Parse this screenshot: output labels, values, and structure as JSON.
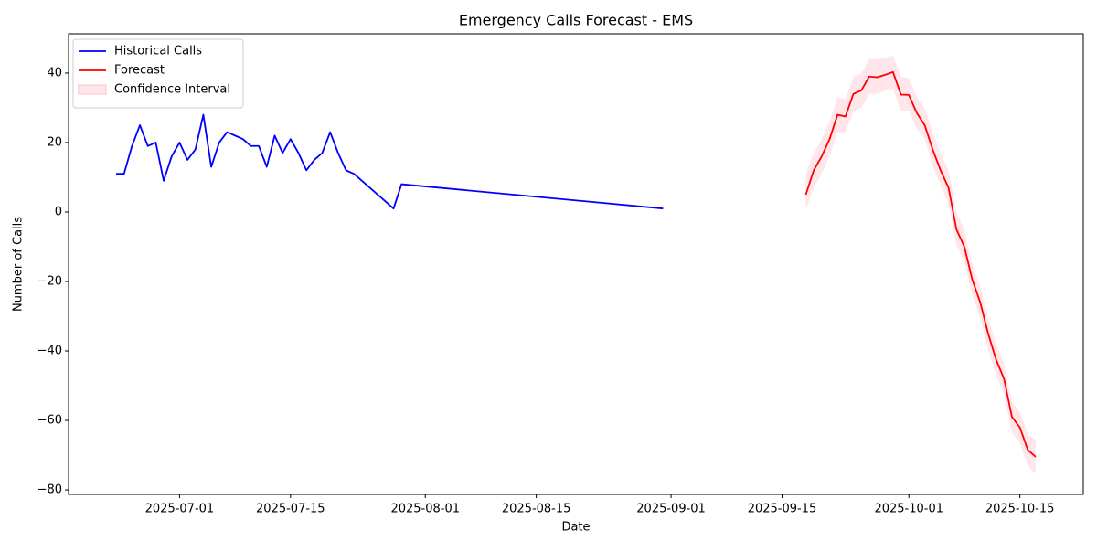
{
  "chart_data": {
    "type": "line",
    "title": "Emergency Calls Forecast - EMS",
    "xlabel": "Date",
    "ylabel": "Number of Calls",
    "xlim": [
      "2025-06-17",
      "2025-10-23"
    ],
    "xticks": [
      "2025-07-01",
      "2025-07-15",
      "2025-08-01",
      "2025-08-15",
      "2025-09-01",
      "2025-09-15",
      "2025-10-01",
      "2025-10-15"
    ],
    "ylim": [
      -81.3,
      51.3
    ],
    "yticks": [
      {
        "value": -80,
        "label": "−80"
      },
      {
        "value": -60,
        "label": "−60"
      },
      {
        "value": -40,
        "label": "−40"
      },
      {
        "value": -20,
        "label": "−20"
      },
      0,
      20,
      40
    ],
    "legend": "upper left",
    "series": [
      {
        "name": "Historical Calls",
        "color": "#0000ff",
        "x": [
          "2025-06-23",
          "2025-06-24",
          "2025-06-25",
          "2025-06-26",
          "2025-06-27",
          "2025-06-28",
          "2025-06-29",
          "2025-06-30",
          "2025-07-01",
          "2025-07-02",
          "2025-07-03",
          "2025-07-04",
          "2025-07-05",
          "2025-07-06",
          "2025-07-07",
          "2025-07-08",
          "2025-07-09",
          "2025-07-10",
          "2025-07-11",
          "2025-07-12",
          "2025-07-13",
          "2025-07-14",
          "2025-07-15",
          "2025-07-16",
          "2025-07-17",
          "2025-07-18",
          "2025-07-19",
          "2025-07-20",
          "2025-07-21",
          "2025-07-22",
          "2025-07-23",
          "2025-07-28",
          "2025-07-29",
          "2025-08-31"
        ],
        "values": [
          11,
          11,
          19,
          25,
          19,
          20,
          9,
          16,
          20,
          15,
          18,
          28,
          13,
          20,
          23,
          22,
          21,
          19,
          19,
          13,
          22,
          17,
          21,
          17,
          12,
          15,
          17,
          23,
          17,
          12,
          11,
          1,
          8,
          1
        ]
      },
      {
        "name": "Forecast",
        "color": "#ff0000",
        "x": [
          "2025-09-18",
          "2025-09-19",
          "2025-09-20",
          "2025-09-21",
          "2025-09-22",
          "2025-09-23",
          "2025-09-24",
          "2025-09-25",
          "2025-09-26",
          "2025-09-27",
          "2025-09-28",
          "2025-09-29",
          "2025-09-30",
          "2025-10-01",
          "2025-10-02",
          "2025-10-03",
          "2025-10-04",
          "2025-10-05",
          "2025-10-06",
          "2025-10-07",
          "2025-10-08",
          "2025-10-09",
          "2025-10-10",
          "2025-10-11",
          "2025-10-12",
          "2025-10-13",
          "2025-10-14",
          "2025-10-15",
          "2025-10-16",
          "2025-10-17"
        ],
        "values": [
          5,
          12,
          16,
          21,
          28,
          27.5,
          34,
          35,
          39,
          38.8,
          39.5,
          40.3,
          33.8,
          33.7,
          28.5,
          25,
          18,
          12,
          7,
          -5,
          -10,
          -19.5,
          -26,
          -35,
          -42.5,
          -48,
          -59,
          -62,
          -68.5,
          -70.5
        ]
      }
    ],
    "band": {
      "name": "Confidence Interval",
      "color": "#ffc0cb",
      "x": [
        "2025-09-18",
        "2025-09-19",
        "2025-09-20",
        "2025-09-21",
        "2025-09-22",
        "2025-09-23",
        "2025-09-24",
        "2025-09-25",
        "2025-09-26",
        "2025-09-27",
        "2025-09-28",
        "2025-09-29",
        "2025-09-30",
        "2025-10-01",
        "2025-10-02",
        "2025-10-03",
        "2025-10-04",
        "2025-10-05",
        "2025-10-06",
        "2025-10-07",
        "2025-10-08",
        "2025-10-09",
        "2025-10-10",
        "2025-10-11",
        "2025-10-12",
        "2025-10-13",
        "2025-10-14",
        "2025-10-15",
        "2025-10-16",
        "2025-10-17"
      ],
      "lower": [
        0.5,
        7,
        11,
        16,
        23,
        23,
        29,
        30,
        34,
        34,
        35,
        35.5,
        29,
        29,
        24,
        21,
        13.5,
        7.5,
        2.5,
        -9.5,
        -14.5,
        -24,
        -30.5,
        -39.5,
        -47,
        -52.5,
        -63.5,
        -66.5,
        -73,
        -75.5
      ],
      "upper": [
        11,
        17,
        21,
        26,
        33,
        32.5,
        39,
        40,
        44,
        44,
        44.5,
        45,
        39,
        38.5,
        33,
        30,
        23,
        17,
        12,
        0,
        -5,
        -15,
        -21.5,
        -30.5,
        -38,
        -43.5,
        -54.5,
        -57.5,
        -64,
        -65.5
      ]
    }
  }
}
